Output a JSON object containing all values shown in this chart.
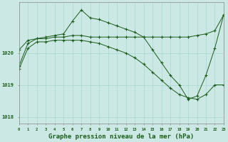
{
  "background_color": "#cce8e4",
  "plot_bg_color": "#cce8e4",
  "line_color": "#1a5c1a",
  "grid_color": "#a8d8d0",
  "xlabel": "Graphe pression niveau de la mer (hPa)",
  "xlabel_fontsize": 6.5,
  "tick_color": "#1a5c1a",
  "xlim": [
    0,
    23
  ],
  "ylim": [
    1017.8,
    1021.6
  ],
  "yticks": [
    1018,
    1019,
    1020
  ],
  "xticks": [
    0,
    1,
    2,
    3,
    4,
    5,
    6,
    7,
    8,
    9,
    10,
    11,
    12,
    13,
    14,
    15,
    16,
    17,
    18,
    19,
    20,
    21,
    22,
    23
  ],
  "series": [
    {
      "x": [
        0,
        1,
        2,
        3,
        4,
        5,
        6,
        7,
        8,
        9,
        10,
        11,
        12,
        13,
        14,
        15,
        16,
        17,
        18,
        19,
        20,
        21,
        22,
        23
      ],
      "y": [
        1020.1,
        1020.4,
        1020.45,
        1020.45,
        1020.5,
        1020.5,
        1020.55,
        1020.55,
        1020.5,
        1020.5,
        1020.5,
        1020.5,
        1020.5,
        1020.5,
        1020.5,
        1020.5,
        1020.5,
        1020.5,
        1020.5,
        1020.5,
        1020.55,
        1020.6,
        1020.7,
        1021.2
      ]
    },
    {
      "x": [
        0,
        1,
        2,
        3,
        4,
        5,
        6,
        7,
        8,
        9,
        10,
        11,
        12,
        13,
        14,
        15,
        16,
        17,
        18,
        19,
        20,
        21,
        22,
        23
      ],
      "y": [
        1019.6,
        1020.3,
        1020.45,
        1020.5,
        1020.55,
        1020.6,
        1021.0,
        1021.35,
        1021.1,
        1021.05,
        1020.95,
        1020.85,
        1020.75,
        1020.65,
        1020.5,
        1020.1,
        1019.7,
        1019.3,
        1019.0,
        1018.55,
        1018.65,
        1019.3,
        1020.15,
        1021.2
      ]
    },
    {
      "x": [
        0,
        1,
        2,
        3,
        4,
        5,
        6,
        7,
        8,
        9,
        10,
        11,
        12,
        13,
        14,
        15,
        16,
        17,
        18,
        19,
        20,
        21,
        22,
        23
      ],
      "y": [
        1019.5,
        1020.15,
        1020.35,
        1020.35,
        1020.4,
        1020.4,
        1020.4,
        1020.4,
        1020.35,
        1020.3,
        1020.2,
        1020.1,
        1020.0,
        1019.85,
        1019.65,
        1019.4,
        1019.15,
        1018.9,
        1018.7,
        1018.6,
        1018.55,
        1018.7,
        1019.0,
        1019.0
      ]
    }
  ]
}
